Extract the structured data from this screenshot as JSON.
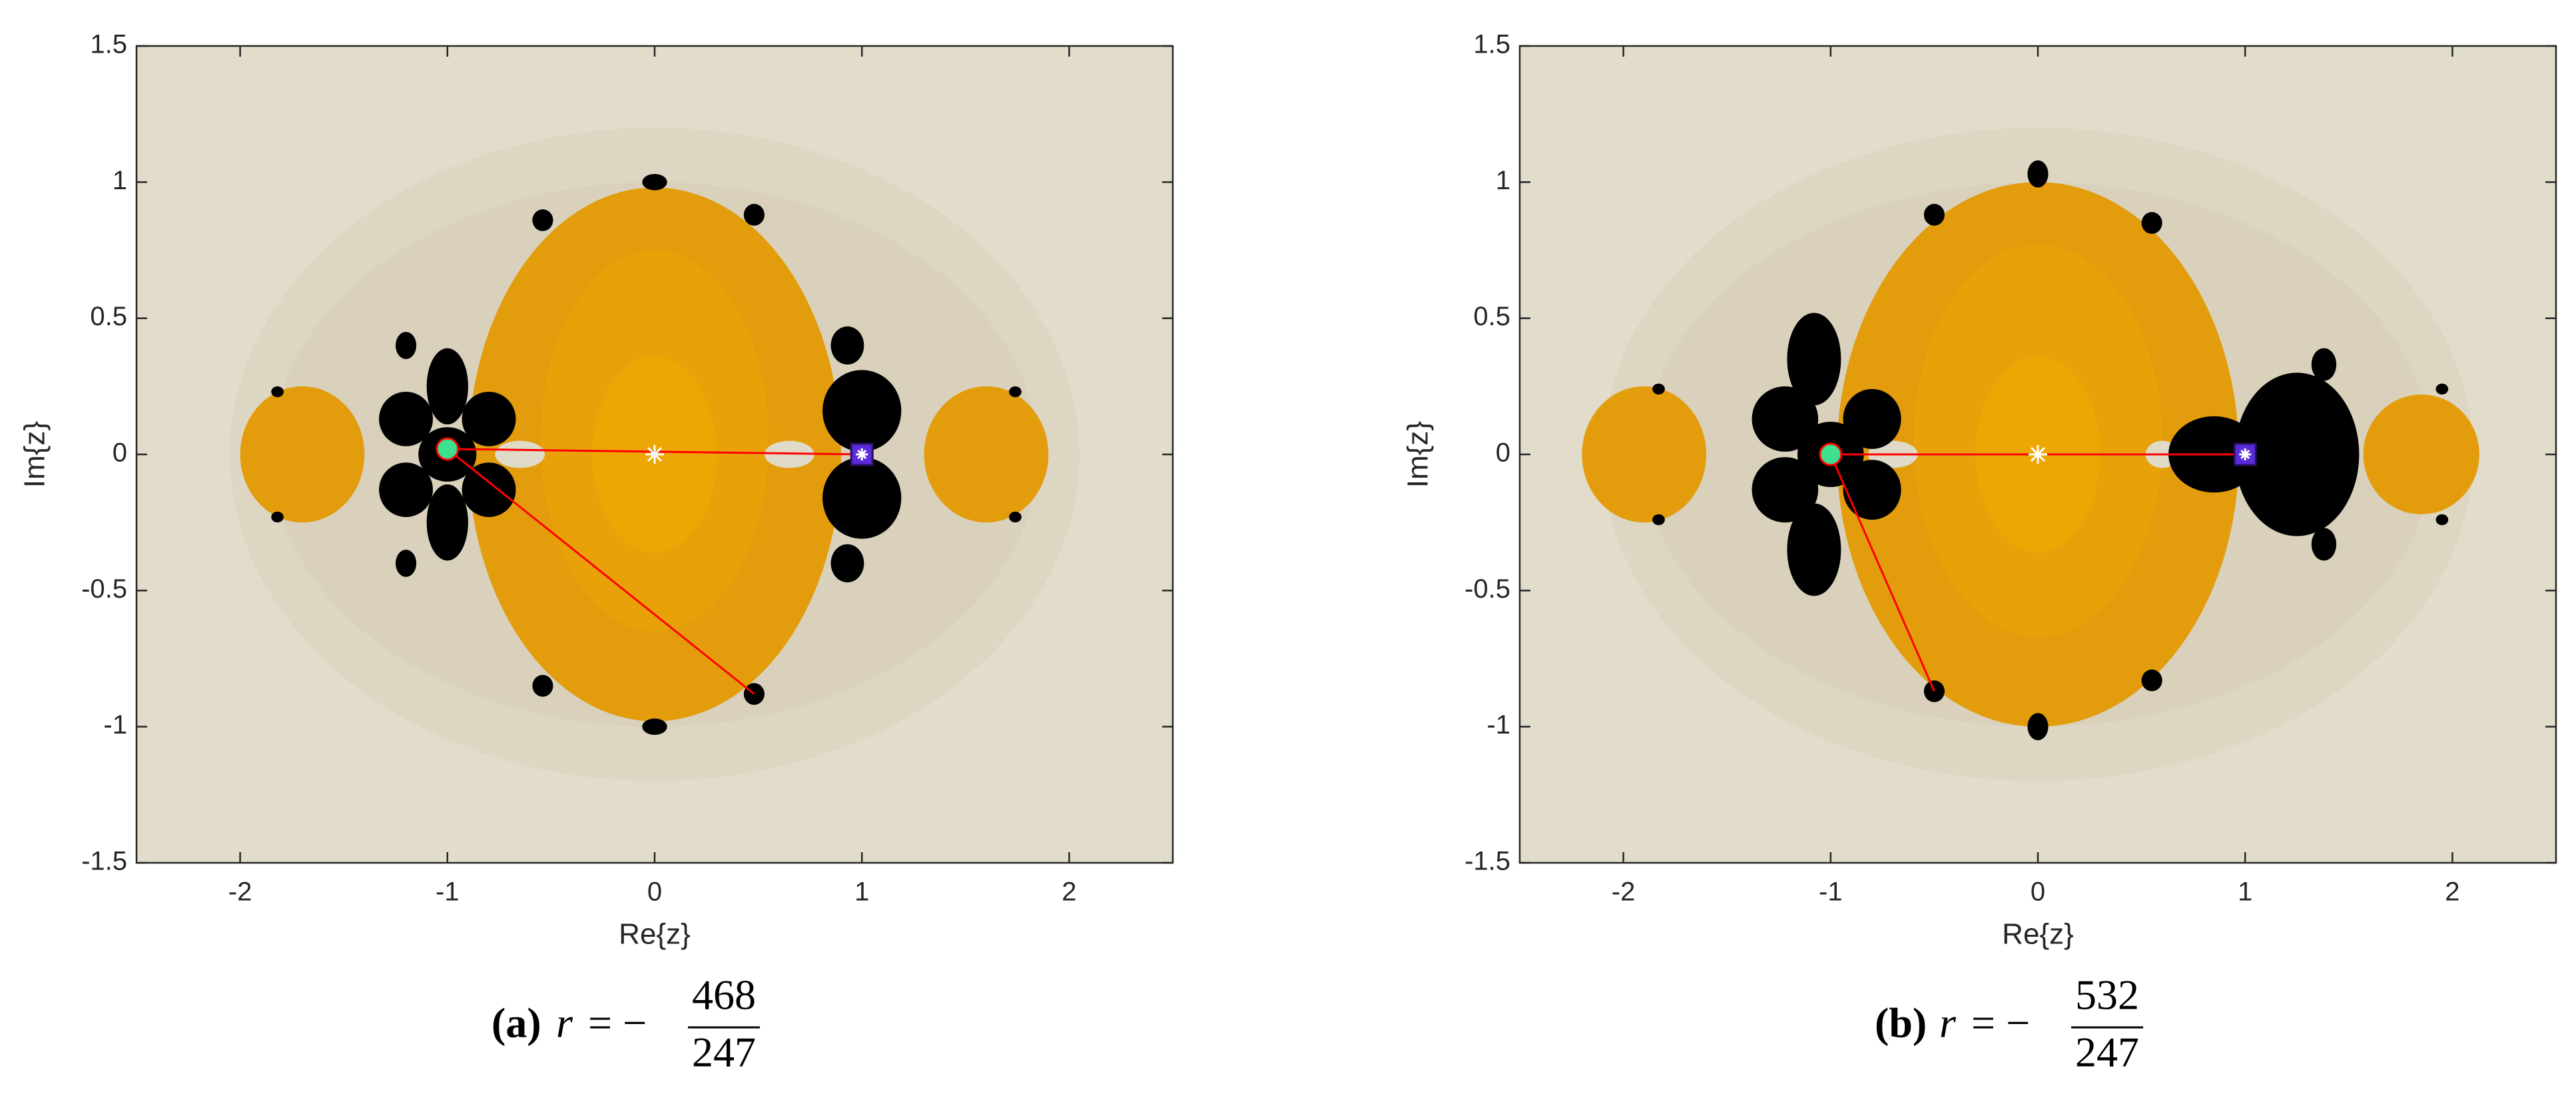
{
  "chart_data": [
    {
      "type": "fractal",
      "xlabel": "Re{z}",
      "ylabel": "Im{z}",
      "xlim": [
        -2.5,
        2.5
      ],
      "ylim": [
        -1.5,
        1.5
      ],
      "xticks": [
        -2,
        -1,
        0,
        1,
        2
      ],
      "yticks": [
        -1.5,
        -1,
        -0.5,
        0,
        0.5,
        1,
        1.5
      ],
      "background": "#e2dccb",
      "series": [
        {
          "marker": "line",
          "color": "#ff0000",
          "x": [
            1,
            -1,
            0.48
          ],
          "y": [
            0,
            0.02,
            -0.88
          ]
        },
        {
          "marker": "star",
          "color": "#ffffff",
          "x": [
            0
          ],
          "y": [
            0
          ]
        },
        {
          "marker": "circle",
          "color": "#3de08f",
          "x": [
            -1
          ],
          "y": [
            0.02
          ]
        },
        {
          "marker": "square",
          "color": "#5a2bd8",
          "x": [
            1
          ],
          "y": [
            0
          ]
        }
      ],
      "caption": {
        "label": "(a)",
        "variable": "r",
        "relation": "= −",
        "numerator": "468",
        "denominator": "247"
      }
    },
    {
      "type": "fractal",
      "xlabel": "Re{z}",
      "ylabel": "Im{z}",
      "xlim": [
        -2.5,
        2.5
      ],
      "ylim": [
        -1.5,
        1.5
      ],
      "xticks": [
        -2,
        -1,
        0,
        1,
        2
      ],
      "yticks": [
        -1.5,
        -1,
        -0.5,
        0,
        0.5,
        1,
        1.5
      ],
      "background": "#e2dccb",
      "series": [
        {
          "marker": "line",
          "color": "#ff0000",
          "x": [
            1,
            -1,
            -0.5
          ],
          "y": [
            0,
            0,
            -0.87
          ]
        },
        {
          "marker": "star",
          "color": "#ffffff",
          "x": [
            0
          ],
          "y": [
            0
          ]
        },
        {
          "marker": "circle",
          "color": "#3de08f",
          "x": [
            -1
          ],
          "y": [
            0
          ]
        },
        {
          "marker": "square",
          "color": "#5a2bd8",
          "x": [
            1
          ],
          "y": [
            0
          ]
        }
      ],
      "caption": {
        "label": "(b)",
        "variable": "r",
        "relation": "= −",
        "numerator": "532",
        "denominator": "247"
      }
    }
  ]
}
